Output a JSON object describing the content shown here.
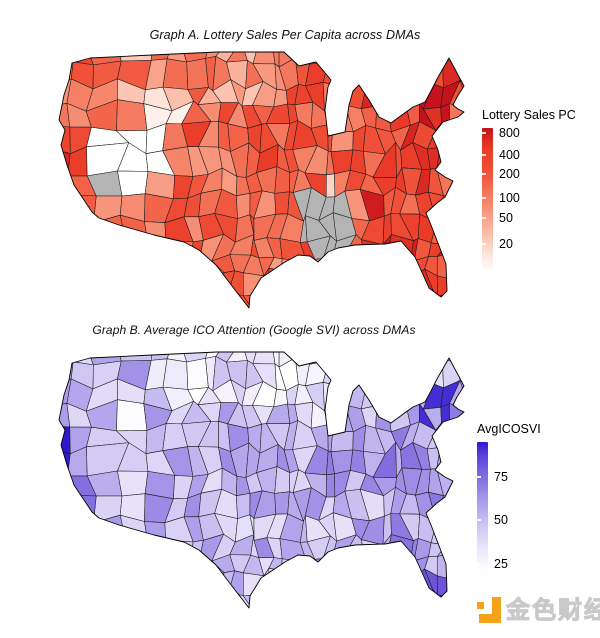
{
  "titles": {
    "graph_a": "Graph A. Lottery Sales Per Capita across DMAs",
    "graph_b": "Graph B. Average ICO Attention (Google SVI) across DMAs"
  },
  "legend_a": {
    "title": "Lottery Sales PC",
    "ticks": [
      {
        "label": "800",
        "pos": 0.03
      },
      {
        "label": "400",
        "pos": 0.165
      },
      {
        "label": "200",
        "pos": 0.28
      },
      {
        "label": "100",
        "pos": 0.427
      },
      {
        "label": "50",
        "pos": 0.549
      },
      {
        "label": "20",
        "pos": 0.707
      }
    ]
  },
  "legend_b": {
    "title": "AvgICOSVI",
    "ticks": [
      {
        "label": "75",
        "pos": 0.238
      },
      {
        "label": "50",
        "pos": 0.531
      },
      {
        "label": "25",
        "pos": 0.83
      }
    ]
  },
  "watermark": {
    "text": "金色财经",
    "logo_color": "#F5A21B",
    "text_color": "#c9c9c9"
  },
  "chart_data": [
    {
      "type": "choropleth",
      "title": "Graph A. Lottery Sales Per Capita across DMAs",
      "region_unit": "US Designated Market Areas (DMAs)",
      "variable": "Lottery Sales Per Capita",
      "legend_title": "Lottery Sales PC",
      "scale_type": "log",
      "scale_ticks": [
        800,
        400,
        200,
        100,
        50,
        20
      ],
      "color_low": "#ffffff",
      "color_high": "#c5121c",
      "na_color": "#b4b4b4",
      "notable": [
        "Most DMAs medium-to-dark red (roughly 100-400 lottery sales per capita)",
        "Massachusetts / Boston DMA darkest red (~800, highest)",
        "Northeast corridor generally darkest",
        "Utah-area DMAs white (near zero, no lottery)",
        "Las Vegas / Nevada DMA gray (NA)",
        "Alabama / Mississippi DMA cluster gray (NA)"
      ],
      "render": {
        "seed": 1001,
        "base": 0.62,
        "noise": 0.46,
        "stops": [
          [
            0,
            "#ffffff"
          ],
          [
            0.12,
            "#fde5dc"
          ],
          [
            0.3,
            "#fbb49e"
          ],
          [
            0.5,
            "#f58267"
          ],
          [
            0.7,
            "#f05138"
          ],
          [
            0.86,
            "#ea3a27"
          ],
          [
            1,
            "#c5121c"
          ]
        ],
        "bands": [
          {
            "x": [
              0.25,
              0.6
            ],
            "y": [
              0,
              0.2
            ],
            "dv": -0.18
          },
          {
            "x": [
              0.14,
              0.33
            ],
            "y": [
              0.1,
              0.33
            ],
            "dv": -0.14
          },
          {
            "x": [
              0.76,
              1
            ],
            "y": [
              0,
              1
            ],
            "dv": 0.14
          },
          {
            "x": [
              0,
              0.14
            ],
            "y": [
              0.3,
              0.75
            ],
            "dv": 0.1
          }
        ],
        "zones": [
          {
            "x": [
              0.2,
              0.345
            ],
            "y": [
              0.28,
              0.52
            ],
            "v": 0.0
          },
          {
            "x": [
              0.295,
              0.4
            ],
            "y": [
              0.2,
              0.285
            ],
            "v": 0.07
          },
          {
            "x": [
              0.155,
              0.25
            ],
            "y": [
              0.37,
              0.57
            ],
            "na": true
          },
          {
            "x": [
              0.63,
              0.75
            ],
            "y": [
              0.58,
              0.78
            ],
            "na": true
          },
          {
            "x": [
              0.615,
              0.7
            ],
            "y": [
              0.52,
              0.58
            ],
            "v": 0.18
          },
          {
            "x": [
              0.9,
              0.97
            ],
            "y": [
              0.16,
              0.26
            ],
            "v": 1.0
          }
        ]
      }
    },
    {
      "type": "choropleth",
      "title": "Graph B. Average ICO Attention (Google SVI) across DMAs",
      "region_unit": "US Designated Market Areas (DMAs)",
      "variable": "Average ICO Attention (Google Search Volume Index)",
      "legend_title": "AvgICOSVI",
      "scale_type": "linear",
      "scale_ticks": [
        75,
        50,
        25
      ],
      "color_low": "#ffffff",
      "color_high": "#2f18cf",
      "na_color": "#b4b4b4",
      "notable": [
        "San Francisco Bay Area DMA darkest blue (highest ICO attention)",
        "Boston / New York area dark blue",
        "South Florida dark blue",
        "Northern plains (Montana / Dakotas) and upper Midwest palest",
        "Small Idaho-area DMA near-white"
      ],
      "render": {
        "seed": 2002,
        "base": 0.4,
        "noise": 0.42,
        "stops": [
          [
            0,
            "#ffffff"
          ],
          [
            0.15,
            "#eeeafb"
          ],
          [
            0.35,
            "#d0c6f3"
          ],
          [
            0.55,
            "#a99ae9"
          ],
          [
            0.75,
            "#7c67de"
          ],
          [
            0.9,
            "#5a41d8"
          ],
          [
            1,
            "#2f18cf"
          ]
        ],
        "bands": [
          {
            "x": [
              0.28,
              0.62
            ],
            "y": [
              0,
              0.22
            ],
            "dv": -0.2
          },
          {
            "x": [
              0.55,
              0.72
            ],
            "y": [
              0.08,
              0.32
            ],
            "dv": -0.12
          },
          {
            "x": [
              0,
              0.14
            ],
            "y": [
              0.25,
              0.8
            ],
            "dv": 0.22
          },
          {
            "x": [
              0.8,
              1
            ],
            "y": [
              0.1,
              1
            ],
            "dv": 0.12
          },
          {
            "x": [
              0.62,
              0.8
            ],
            "y": [
              0.3,
              0.6
            ],
            "dv": 0.06
          }
        ],
        "zones": [
          {
            "x": [
              0.075,
              0.135
            ],
            "y": [
              0.32,
              0.47
            ],
            "v": 1.0
          },
          {
            "x": [
              0.24,
              0.285
            ],
            "y": [
              0.22,
              0.3
            ],
            "v": 0.03
          },
          {
            "x": [
              0.9,
              0.965
            ],
            "y": [
              0.17,
              0.26
            ],
            "v": 0.95
          },
          {
            "x": [
              0.87,
              0.97
            ],
            "y": [
              0.86,
              0.99
            ],
            "v": 0.82
          },
          {
            "x": [
              0.11,
              0.185
            ],
            "y": [
              0.52,
              0.63
            ],
            "v": 0.72
          }
        ]
      }
    }
  ]
}
